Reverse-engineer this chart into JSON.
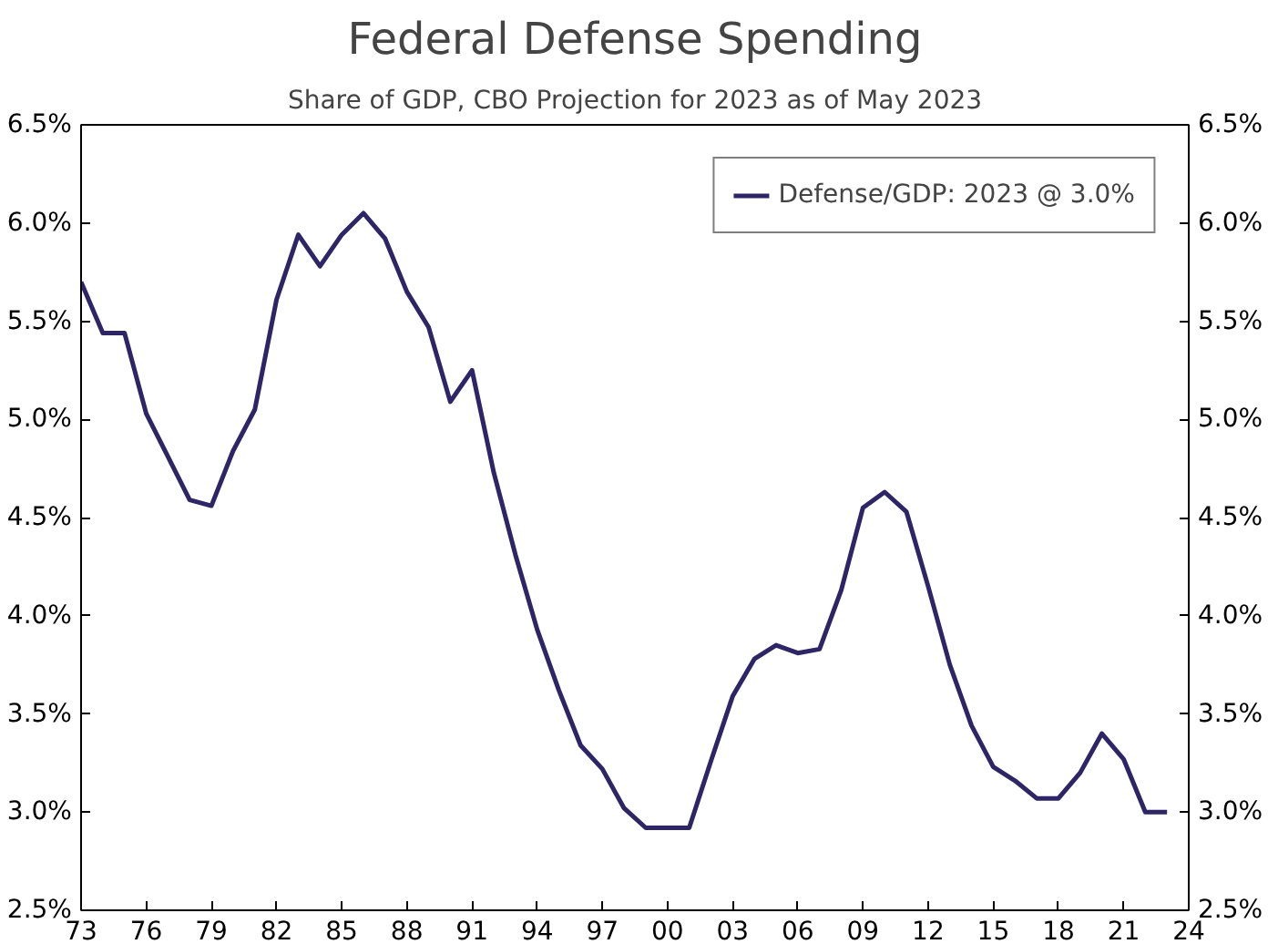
{
  "chart_data": {
    "type": "line",
    "title": "Federal Defense Spending",
    "subtitle": "Share of GDP, CBO Projection for 2023 as of May 2023",
    "x": [
      1973,
      1974,
      1975,
      1976,
      1977,
      1978,
      1979,
      1980,
      1981,
      1982,
      1983,
      1984,
      1985,
      1986,
      1987,
      1988,
      1989,
      1990,
      1991,
      1992,
      1993,
      1994,
      1995,
      1996,
      1997,
      1998,
      1999,
      2000,
      2001,
      2002,
      2003,
      2004,
      2005,
      2006,
      2007,
      2008,
      2009,
      2010,
      2011,
      2012,
      2013,
      2014,
      2015,
      2016,
      2017,
      2018,
      2019,
      2020,
      2021,
      2022,
      2023
    ],
    "series": [
      {
        "name": "Defense/GDP: 2023 @ 3.0%",
        "color": "#2e2566",
        "values": [
          5.7,
          5.44,
          5.44,
          5.03,
          4.81,
          4.59,
          4.56,
          4.84,
          5.05,
          5.61,
          5.94,
          5.78,
          5.94,
          6.05,
          5.92,
          5.65,
          5.47,
          5.09,
          5.25,
          4.73,
          4.31,
          3.93,
          3.62,
          3.34,
          3.22,
          3.02,
          2.92,
          2.92,
          2.92,
          3.26,
          3.59,
          3.78,
          3.85,
          3.81,
          3.83,
          4.13,
          4.55,
          4.63,
          4.53,
          4.15,
          3.75,
          3.44,
          3.23,
          3.16,
          3.07,
          3.07,
          3.2,
          3.4,
          3.27,
          3.0,
          3.0
        ]
      }
    ],
    "xlim": [
      1973,
      2024
    ],
    "xticks": [
      {
        "value": 1973,
        "label": "73"
      },
      {
        "value": 1976,
        "label": "76"
      },
      {
        "value": 1979,
        "label": "79"
      },
      {
        "value": 1982,
        "label": "82"
      },
      {
        "value": 1985,
        "label": "85"
      },
      {
        "value": 1988,
        "label": "88"
      },
      {
        "value": 1991,
        "label": "91"
      },
      {
        "value": 1994,
        "label": "94"
      },
      {
        "value": 1997,
        "label": "97"
      },
      {
        "value": 2000,
        "label": "00"
      },
      {
        "value": 2003,
        "label": "03"
      },
      {
        "value": 2006,
        "label": "06"
      },
      {
        "value": 2009,
        "label": "09"
      },
      {
        "value": 2012,
        "label": "12"
      },
      {
        "value": 2015,
        "label": "15"
      },
      {
        "value": 2018,
        "label": "18"
      },
      {
        "value": 2021,
        "label": "21"
      },
      {
        "value": 2024,
        "label": "24"
      }
    ],
    "ylim": [
      2.5,
      6.5
    ],
    "yticks": [
      {
        "value": 2.5,
        "label": "2.5%"
      },
      {
        "value": 3.0,
        "label": "3.0%"
      },
      {
        "value": 3.5,
        "label": "3.5%"
      },
      {
        "value": 4.0,
        "label": "4.0%"
      },
      {
        "value": 4.5,
        "label": "4.5%"
      },
      {
        "value": 5.0,
        "label": "5.0%"
      },
      {
        "value": 5.5,
        "label": "5.5%"
      },
      {
        "value": 6.0,
        "label": "6.0%"
      },
      {
        "value": 6.5,
        "label": "6.5%"
      }
    ],
    "y2lim": [
      2.5,
      6.5
    ],
    "y2ticks": [
      {
        "value": 2.5,
        "label": "2.5%"
      },
      {
        "value": 3.0,
        "label": "3.0%"
      },
      {
        "value": 3.5,
        "label": "3.5%"
      },
      {
        "value": 4.0,
        "label": "4.0%"
      },
      {
        "value": 4.5,
        "label": "4.5%"
      },
      {
        "value": 5.0,
        "label": "5.0%"
      },
      {
        "value": 5.5,
        "label": "5.5%"
      },
      {
        "value": 6.0,
        "label": "6.0%"
      },
      {
        "value": 6.5,
        "label": "6.5%"
      }
    ],
    "grid": false,
    "legend": "top right"
  }
}
